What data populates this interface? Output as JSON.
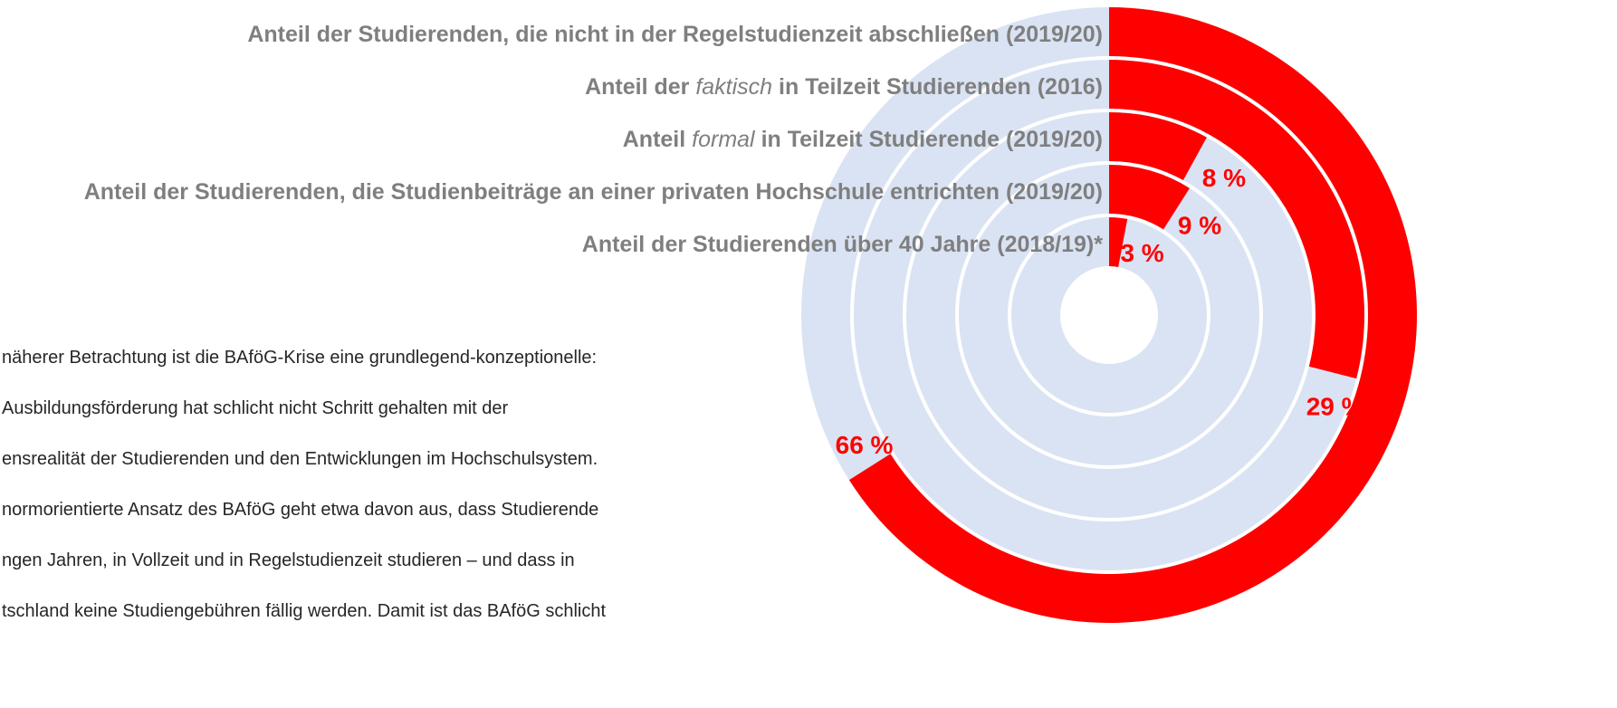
{
  "chart_data": {
    "type": "radial-bar",
    "categories": [
      "Anteil der Studierenden, die nicht in der Regelstudienzeit  abschließen (2019/20)",
      "Anteil der faktisch  in Teilzeit Studierenden (2016)",
      "Anteil formal  in Teilzeit Studierende (2019/20)",
      "Anteil der Studierenden, die Studienbeiträge an einer privaten Hochschule entrichten (2019/20)",
      "Anteil der Studierenden über 40 Jahre (2018/19)*"
    ],
    "emphasis": [
      null,
      "faktisch",
      "formal",
      null,
      null
    ],
    "values": [
      66,
      29,
      8,
      9,
      3
    ],
    "value_labels": [
      "66 %",
      "29 %",
      "8 %",
      "9 %",
      "3 %"
    ],
    "ylim": [
      0,
      100
    ],
    "color": "#ff0000",
    "track_color": "#dae3f3"
  },
  "text": {
    "lines": [
      "näherer Betrachtung ist die BAföG-Krise eine grundlegend-konzeptionelle:",
      "Ausbildungsförderung hat schlicht nicht Schritt gehalten mit der",
      "ensrealität der Studierenden und den Entwicklungen im Hochschulsystem.",
      "normorientierte Ansatz des BAföG geht etwa davon aus, dass Studierende",
      "ngen Jahren, in Vollzeit und in Regelstudienzeit studieren – und dass in",
      "tschland keine Studiengebühren fällig werden. Damit ist das BAföG schlicht"
    ]
  }
}
